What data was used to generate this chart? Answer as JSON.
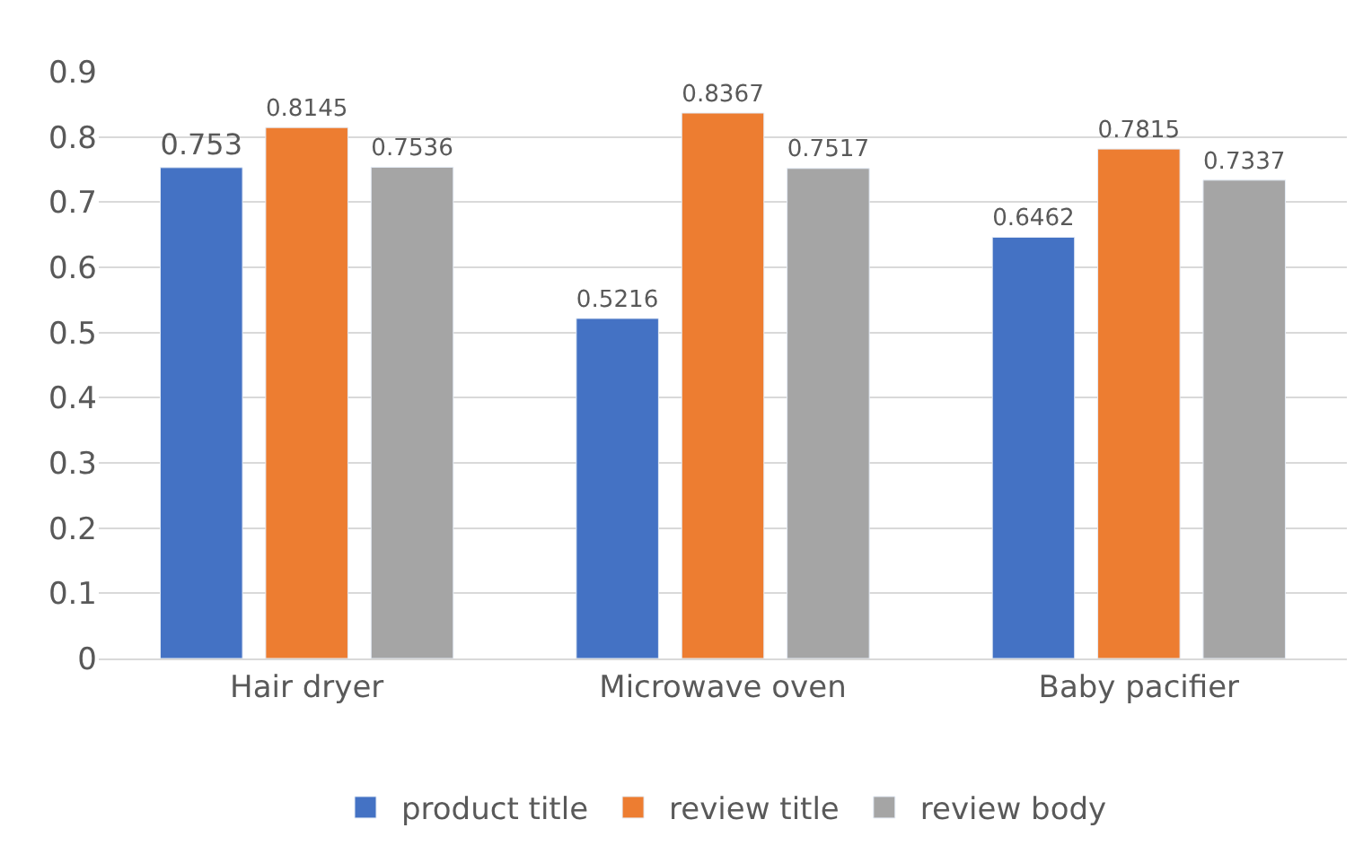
{
  "chart_data": {
    "type": "bar",
    "categories": [
      "Hair dryer",
      "Microwave oven",
      "Baby pacifier"
    ],
    "series": [
      {
        "name": "product title",
        "color": "#4472c4",
        "values": [
          0.753,
          0.5216,
          0.6462
        ]
      },
      {
        "name": "review title",
        "color": "#ed7d31",
        "values": [
          0.8145,
          0.8367,
          0.7815
        ]
      },
      {
        "name": "review body",
        "color": "#a5a5a5",
        "values": [
          0.7536,
          0.7517,
          0.7337
        ]
      }
    ],
    "ylim": [
      0,
      0.9
    ],
    "yticks": [
      0,
      0.1,
      0.2,
      0.3,
      0.4,
      0.5,
      0.6,
      0.7,
      0.8,
      0.9
    ],
    "grid": "y",
    "legend": "bottom",
    "data_labels": true
  }
}
